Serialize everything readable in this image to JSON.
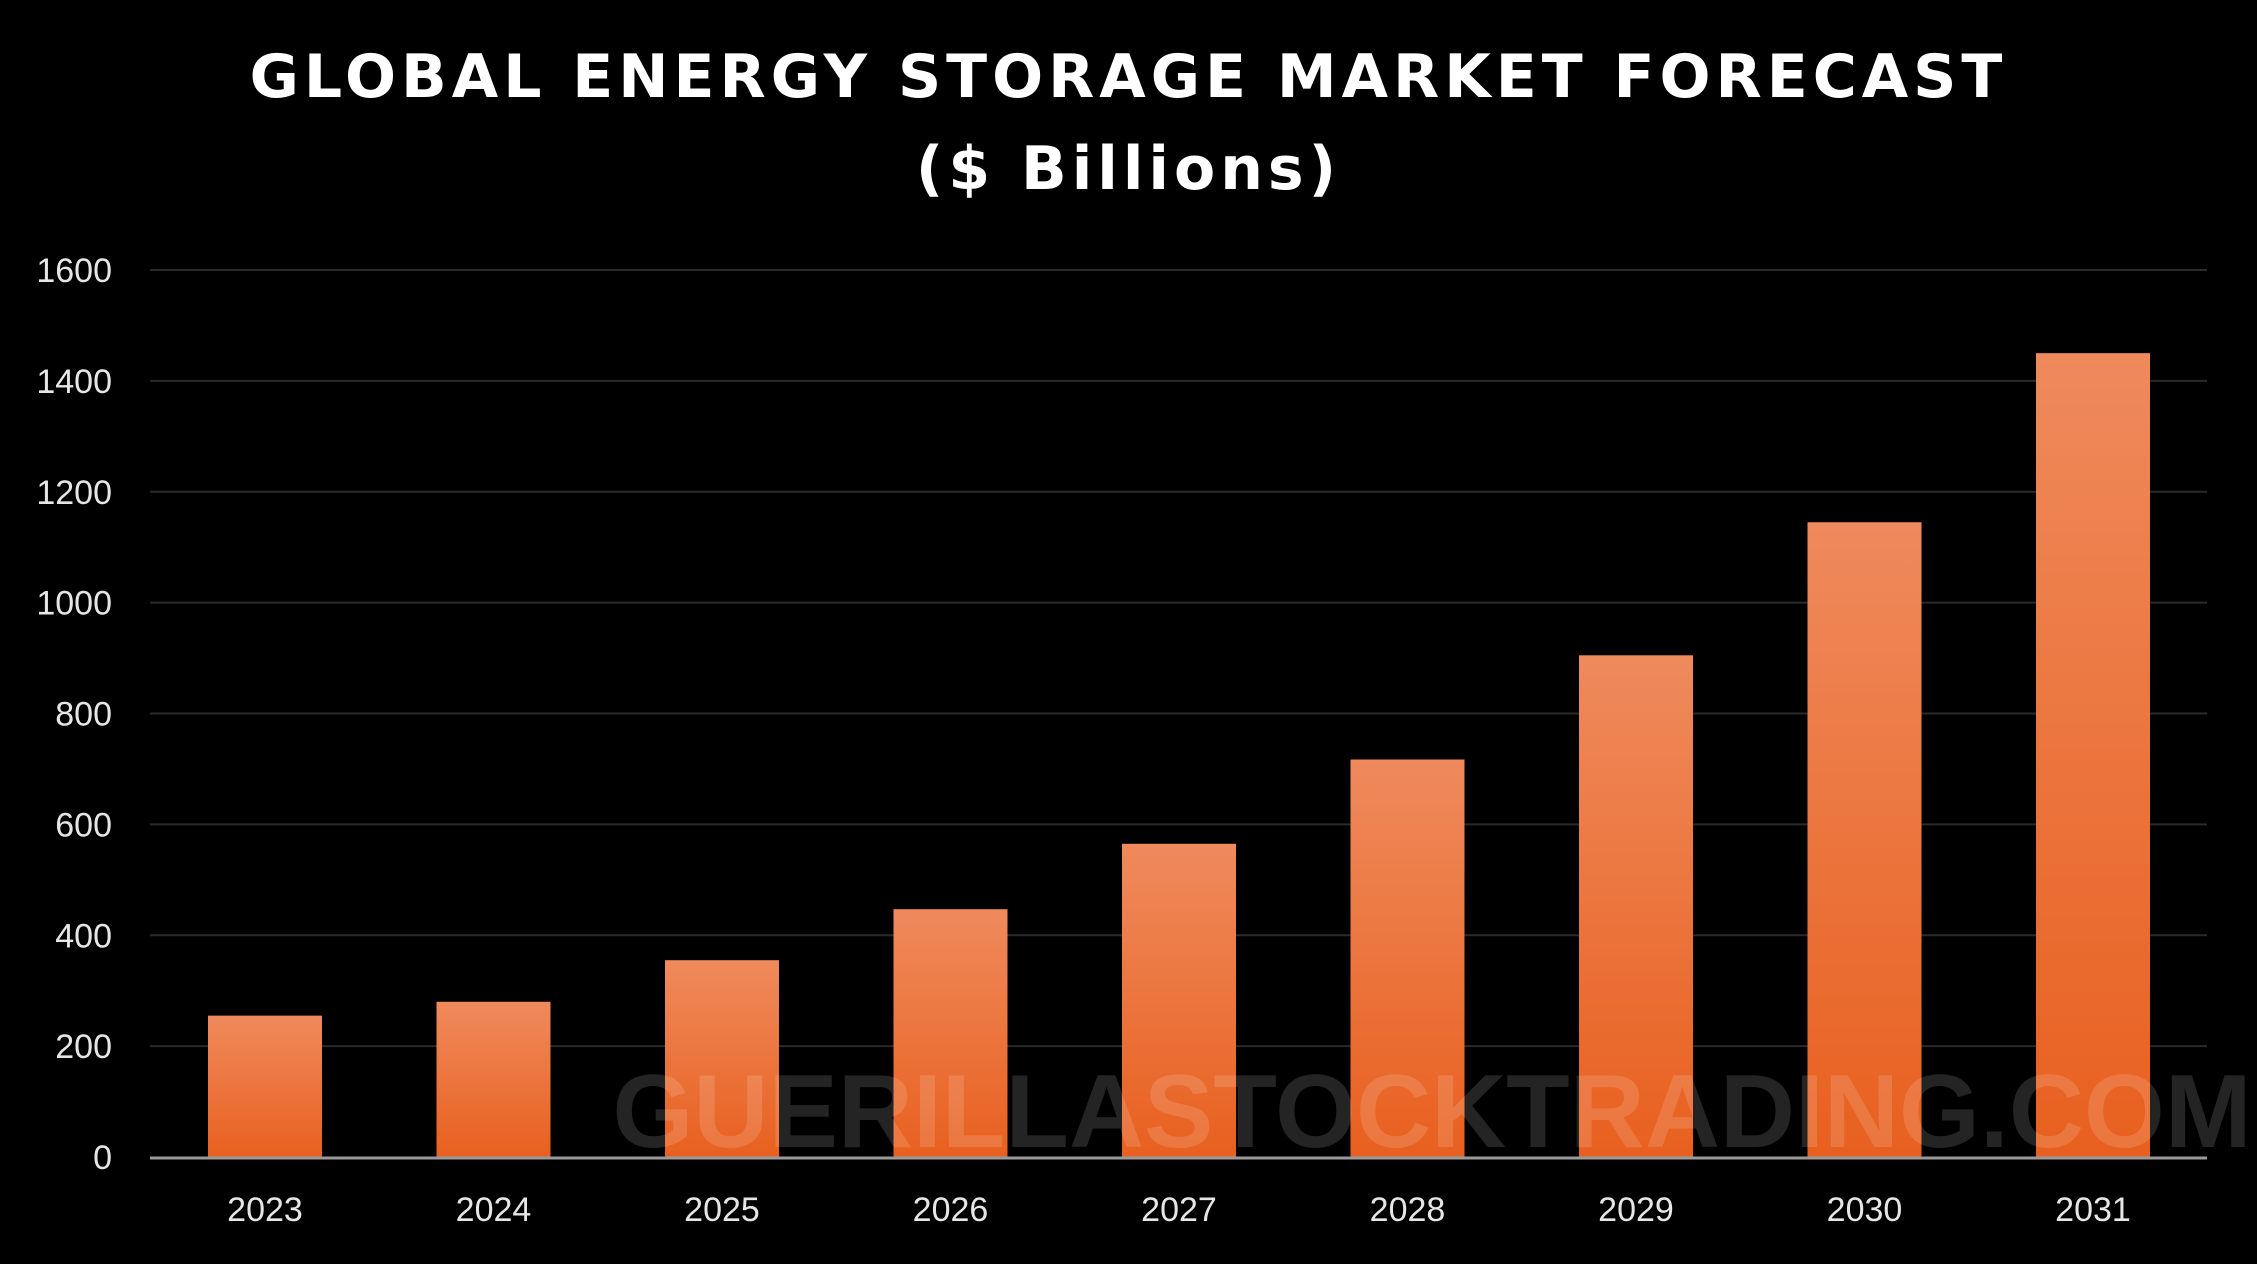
{
  "header": {
    "title_line_1": "GLOBAL ENERGY STORAGE MARKET FORECAST",
    "title_line_2": "($ Billions)"
  },
  "watermark": "GUERILLASTOCKTRADING.COM",
  "colors": {
    "background": "#000000",
    "bar_top": "#ef8a5c",
    "bar_bottom": "#e8601f",
    "grid": "#2a2a2a",
    "axis": "#9a9a9a",
    "text": "#e6e6e6"
  },
  "chart_data": {
    "type": "bar",
    "title": "GLOBAL ENERGY STORAGE MARKET FORECAST ($ Billions)",
    "xlabel": "",
    "ylabel": "",
    "categories": [
      "2023",
      "2024",
      "2025",
      "2026",
      "2027",
      "2028",
      "2029",
      "2030",
      "2031"
    ],
    "values": [
      255,
      280,
      355,
      447,
      565,
      717,
      905,
      1145,
      1450
    ],
    "ylim": [
      0,
      1600
    ],
    "yticks": [
      0,
      200,
      400,
      600,
      800,
      1000,
      1200,
      1400,
      1600
    ],
    "grid": true,
    "legend": "none"
  }
}
